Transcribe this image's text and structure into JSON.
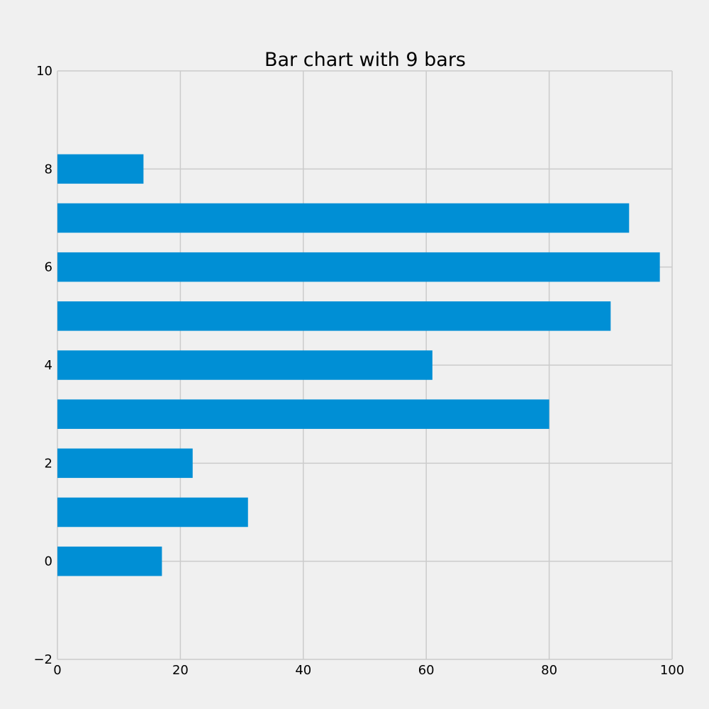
{
  "chart_data": {
    "type": "bar",
    "orientation": "horizontal",
    "title": "Bar chart with 9 bars",
    "xlabel": "",
    "ylabel": "",
    "categories": [
      0,
      1,
      2,
      3,
      4,
      5,
      6,
      7,
      8
    ],
    "values": [
      17,
      31,
      22,
      80,
      61,
      90,
      98,
      93,
      14
    ],
    "xlim": [
      0,
      100
    ],
    "ylim": [
      -2,
      10
    ],
    "x_ticks": [
      0,
      20,
      40,
      60,
      80,
      100
    ],
    "x_tick_labels": [
      "0",
      "20",
      "40",
      "60",
      "80",
      "100"
    ],
    "y_ticks": [
      -2,
      0,
      2,
      4,
      6,
      8,
      10
    ],
    "y_tick_labels": [
      "−2",
      "0",
      "2",
      "4",
      "6",
      "8",
      "10"
    ],
    "grid": true,
    "bar_color": "#008fd5",
    "background_color": "#f0f0f0",
    "grid_color": "#cbcbcb"
  }
}
